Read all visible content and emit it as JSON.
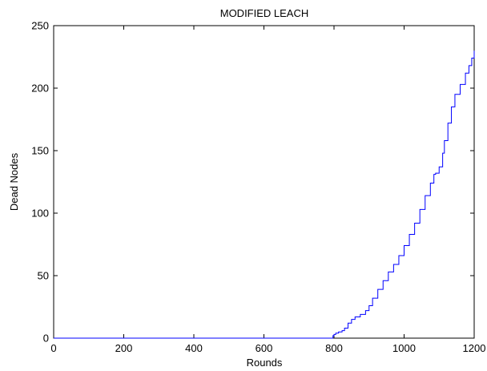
{
  "chart_data": {
    "type": "line",
    "title": "MODIFIED LEACH",
    "xlabel": "Rounds",
    "ylabel": "Dead Nodes",
    "xlim": [
      0,
      1200
    ],
    "ylim": [
      0,
      250
    ],
    "xticks": [
      0,
      200,
      400,
      600,
      800,
      1000,
      1200
    ],
    "yticks": [
      0,
      50,
      100,
      150,
      200,
      250
    ],
    "grid": false,
    "legend": "none",
    "series": [
      {
        "color": "#0000ff",
        "x": [
          0,
          793,
          797,
          800,
          805,
          813,
          823,
          830,
          840,
          850,
          860,
          875,
          890,
          900,
          910,
          925,
          940,
          955,
          970,
          985,
          1000,
          1015,
          1030,
          1045,
          1060,
          1075,
          1085,
          1090,
          1100,
          1110,
          1115,
          1125,
          1135,
          1145,
          1160,
          1175,
          1185,
          1193,
          1200
        ],
        "y": [
          0,
          0,
          2,
          3,
          4,
          5,
          6,
          8,
          12,
          15,
          17,
          19,
          22,
          26,
          32,
          39,
          46,
          53,
          59,
          66,
          74,
          83,
          92,
          103,
          114,
          124,
          131,
          132,
          137,
          148,
          158,
          172,
          185,
          195,
          203,
          212,
          218,
          224,
          230
        ]
      }
    ]
  }
}
